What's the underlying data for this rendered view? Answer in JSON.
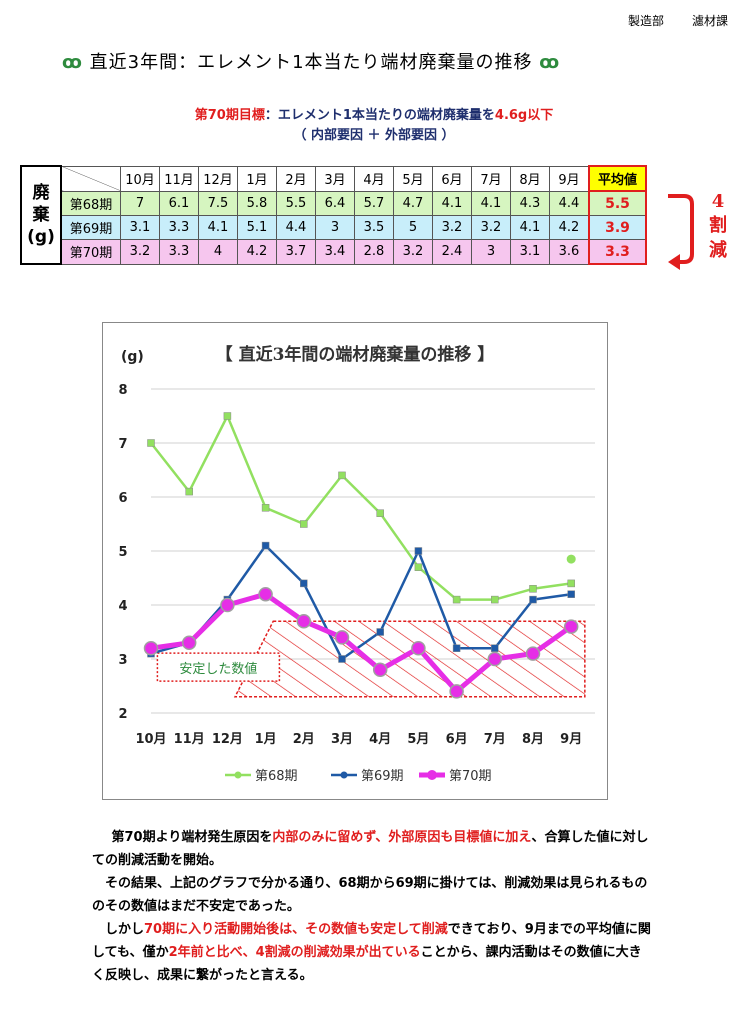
{
  "header": {
    "dept1": "製造部",
    "dept2": "濾材課",
    "ornament_left": "ꝏ",
    "ornament_right": "ꝏ",
    "title": "直近3年間：エレメント1本当たり端材廃棄量の推移"
  },
  "goal": {
    "prefix": "第70期目標",
    "colon": "：",
    "text": "エレメント1本当たりの端材廃棄量を",
    "target": "4.6g以下",
    "sub": "（ 内部要因 ＋ 外部要因 ）"
  },
  "table": {
    "stub_label": [
      "廃",
      "棄",
      "(g)"
    ],
    "months": [
      "10月",
      "11月",
      "12月",
      "1月",
      "2月",
      "3月",
      "4月",
      "5月",
      "6月",
      "7月",
      "8月",
      "9月"
    ],
    "avg_header": "平均値",
    "rows": [
      {
        "key": "r68",
        "label": "第68期",
        "values": [
          "7",
          "6.1",
          "7.5",
          "5.8",
          "5.5",
          "6.4",
          "5.7",
          "4.7",
          "4.1",
          "4.1",
          "4.3",
          "4.4"
        ],
        "avg": "5.5"
      },
      {
        "key": "r69",
        "label": "第69期",
        "values": [
          "3.1",
          "3.3",
          "4.1",
          "5.1",
          "4.4",
          "3",
          "3.5",
          "5",
          "3.2",
          "3.2",
          "4.1",
          "4.2"
        ],
        "avg": "3.9"
      },
      {
        "key": "r70",
        "label": "第70期",
        "values": [
          "3.2",
          "3.3",
          "4",
          "4.2",
          "3.7",
          "3.4",
          "2.8",
          "3.2",
          "2.4",
          "3",
          "3.1",
          "3.6"
        ],
        "avg": "3.3"
      }
    ],
    "cut_label": [
      "4",
      "割",
      "減"
    ]
  },
  "chart_data": {
    "type": "line",
    "title": "【 直近3年間の端材廃棄量の推移 】",
    "ylabel": "(g)",
    "ylim": [
      2,
      8
    ],
    "yticks": [
      2,
      3,
      4,
      5,
      6,
      7,
      8
    ],
    "grid": true,
    "legend_position": "bottom",
    "categories": [
      "10月",
      "11月",
      "12月",
      "1月",
      "2月",
      "3月",
      "4月",
      "5月",
      "6月",
      "7月",
      "8月",
      "9月"
    ],
    "series": [
      {
        "name": "第68期",
        "color": "#92e060",
        "values": [
          7,
          6.1,
          7.5,
          5.8,
          5.5,
          6.4,
          5.7,
          4.7,
          4.1,
          4.1,
          4.3,
          4.4
        ]
      },
      {
        "name": "第69期",
        "color": "#1f5aa6",
        "values": [
          3.1,
          3.3,
          4.1,
          5.1,
          4.4,
          3,
          3.5,
          5,
          3.2,
          3.2,
          4.1,
          4.2
        ]
      },
      {
        "name": "第70期",
        "color": "#e62ee6",
        "values": [
          3.2,
          3.3,
          4,
          4.2,
          3.7,
          3.4,
          2.8,
          3.2,
          2.4,
          3,
          3.1,
          3.6
        ]
      }
    ],
    "extra_point": {
      "category": "9月",
      "value": 4.85,
      "color": "#92e060"
    },
    "band": {
      "label": "安定した数値",
      "ymin": 2.3,
      "ymax": 3.7,
      "color": "#e01e1e"
    }
  },
  "body": {
    "p1_a": "第70期より端材発生原因を",
    "p1_red": "内部のみに留めず、外部原因も目標値に加え",
    "p1_b": "、合算した値に対しての削減活動を開始。",
    "p2": "その結果、上記のグラフで分かる通り、68期から69期に掛けては、削減効果は見られるもののその数値はまだ不安定であった。",
    "p3_a": "しかし",
    "p3_red1": "70期に入り活動開始後は、その数値も安定して削減",
    "p3_b": "できており、9月までの平均値に関しても、僅か",
    "p3_red2": "2年前と比べ、4割減の削減効果が出ている",
    "p3_c": "ことから、課内活動はその数値に大きく反映し、成果に繋がったと言える。"
  }
}
